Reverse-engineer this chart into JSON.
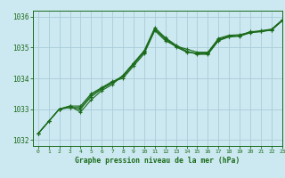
{
  "title": "Graphe pression niveau de la mer (hPa)",
  "bg_color": "#cce8f0",
  "grid_color": "#aaccda",
  "line_color": "#1a6b1a",
  "marker_color": "#1a6b1a",
  "xlim": [
    -0.5,
    23
  ],
  "ylim": [
    1031.8,
    1036.2
  ],
  "yticks": [
    1032,
    1033,
    1034,
    1035,
    1036
  ],
  "xticks": [
    0,
    1,
    2,
    3,
    4,
    5,
    6,
    7,
    8,
    9,
    10,
    11,
    12,
    13,
    14,
    15,
    16,
    17,
    18,
    19,
    20,
    21,
    22,
    23
  ],
  "series": [
    [
      1032.2,
      1032.6,
      1033.0,
      1033.1,
      1033.1,
      1033.5,
      1033.7,
      1033.9,
      1034.0,
      1034.4,
      1034.8,
      1035.55,
      1035.22,
      1035.05,
      1034.95,
      1034.85,
      1034.85,
      1035.3,
      1035.4,
      1035.42,
      1035.5,
      1035.55,
      1035.6,
      1035.9
    ],
    [
      1032.2,
      1032.6,
      1033.0,
      1033.1,
      1032.9,
      1033.3,
      1033.6,
      1033.8,
      1034.1,
      1034.5,
      1034.9,
      1035.65,
      1035.32,
      1035.08,
      1034.88,
      1034.78,
      1034.78,
      1035.22,
      1035.35,
      1035.37,
      1035.48,
      1035.52,
      1035.57,
      1035.87
    ],
    [
      1032.2,
      1032.6,
      1033.0,
      1033.05,
      1033.0,
      1033.4,
      1033.65,
      1033.85,
      1034.05,
      1034.45,
      1034.85,
      1035.6,
      1035.27,
      1035.02,
      1034.85,
      1034.82,
      1034.82,
      1035.27,
      1035.37,
      1035.39,
      1035.52,
      1035.53,
      1035.58,
      1035.88
    ],
    [
      1032.2,
      1032.6,
      1033.0,
      1033.05,
      1033.05,
      1033.45,
      1033.68,
      1033.88,
      1034.08,
      1034.48,
      1034.88,
      1035.58,
      1035.3,
      1035.05,
      1034.88,
      1034.8,
      1034.8,
      1035.25,
      1035.36,
      1035.38,
      1035.5,
      1035.52,
      1035.57,
      1035.87
    ]
  ]
}
